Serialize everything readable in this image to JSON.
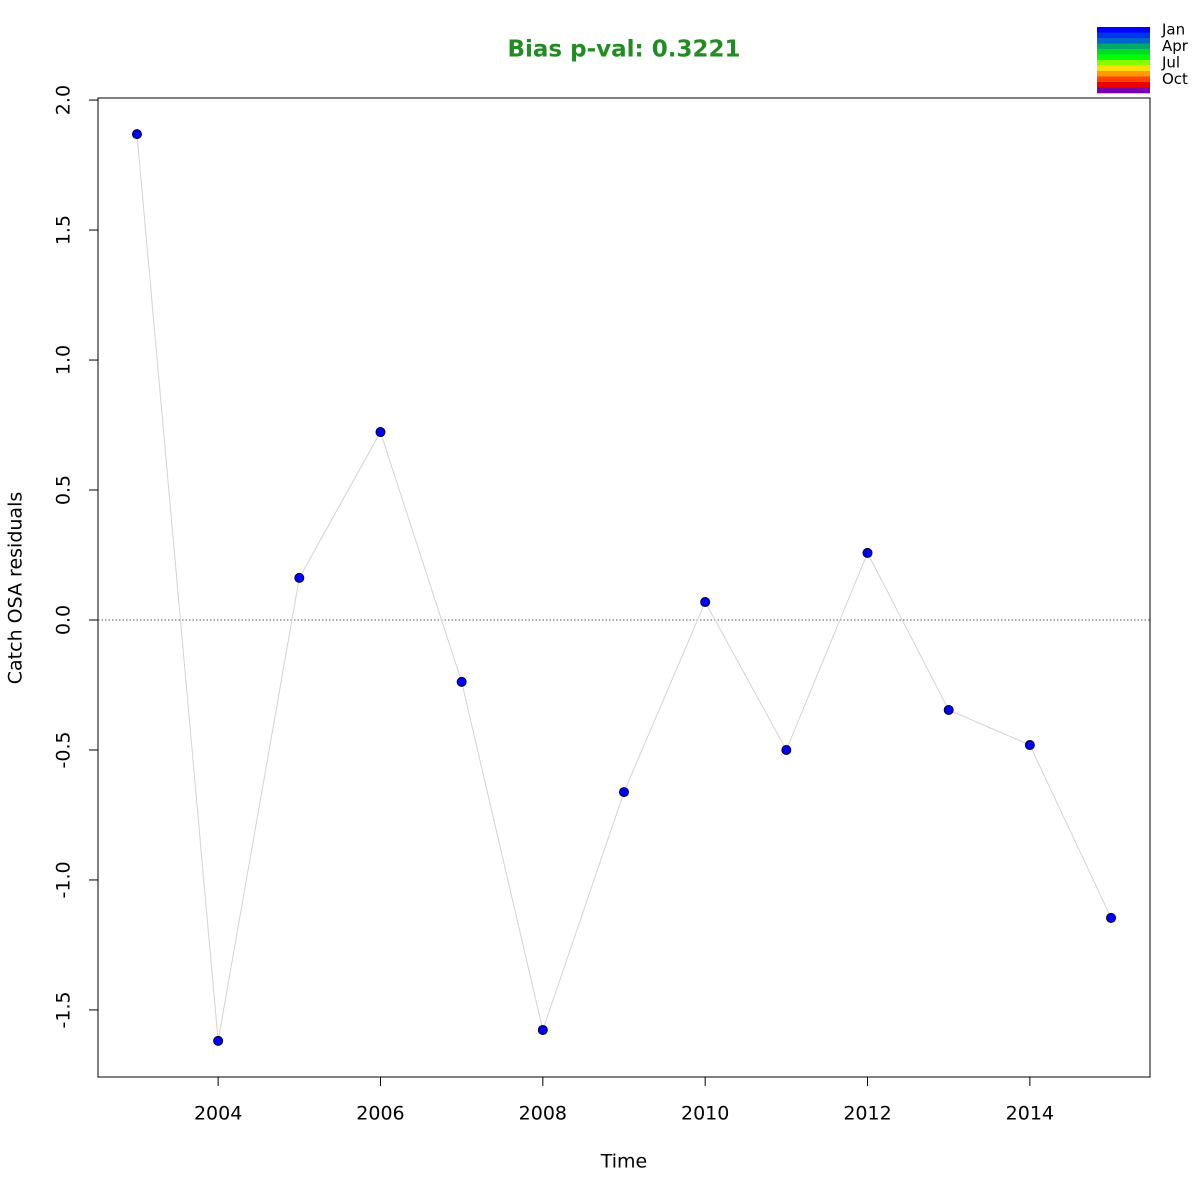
{
  "chart_data": {
    "type": "line",
    "title": "Bias p-val: 0.3221",
    "title_color": "#228b22",
    "x_label": "Time",
    "y_label": "Catch OSA residuals",
    "x": [
      2003,
      2004,
      2005,
      2006,
      2007,
      2008,
      2009,
      2010,
      2011,
      2012,
      2013,
      2014,
      2015
    ],
    "series": [
      {
        "color": "#0000ff",
        "line_color": "#d3d3d3",
        "values": [
          1.869,
          -1.619,
          0.162,
          0.723,
          -0.238,
          -1.577,
          -0.662,
          0.069,
          -0.5,
          0.258,
          -0.346,
          -0.481,
          -1.146
        ]
      }
    ],
    "xlim": [
      2002.52,
      2015.48
    ],
    "xticks": [
      2004,
      2006,
      2008,
      2010,
      2012,
      2014
    ],
    "ylim": [
      -1.758,
      2.008
    ],
    "yticks": [
      -1.5,
      {
        "value": -1,
        "label": "-1.0"
      },
      -0.5,
      {
        "value": 0,
        "label": "0.0"
      },
      0.5,
      {
        "value": 1,
        "label": "1.0"
      },
      1.5,
      {
        "value": 2,
        "label": "2.0"
      }
    ],
    "reference_line": 0,
    "color_legend": {
      "labels": [
        "Jan",
        "Apr",
        "Jul",
        "Oct"
      ],
      "colors": [
        "#0000ff",
        "#0033ee",
        "#0066cc",
        "#00aa66",
        "#00dd22",
        "#00ff00",
        "#88ff00",
        "#ffdd00",
        "#ff9900",
        "#ff4400",
        "#ee0000",
        "#7700aa"
      ]
    }
  }
}
